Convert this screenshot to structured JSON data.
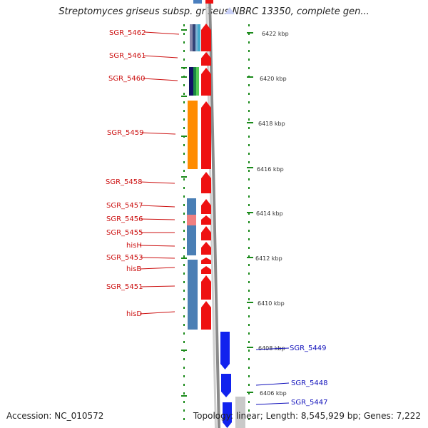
{
  "title": "Streptomyces griseus subsp. griseus NBRC 13350, complete gen...",
  "footer": {
    "accession": "Accession: NC_010572",
    "summary": "Topology: linear; Length: 8,545,929 bp; Genes: 7,222"
  },
  "colors": {
    "gene_forward": "#ee1111",
    "gene_reverse": "#1122ee",
    "label_forward": "#cc1111",
    "label_reverse": "#1111bb",
    "tick": "#1a8a1a",
    "backbone": "#8a8a8a"
  },
  "axis_labels": [
    "6422 kbp",
    "6420 kbp",
    "6418 kbp",
    "6416 kbp",
    "6414 kbp",
    "6412 kbp",
    "6410 kbp",
    "6408 kbp",
    "6406 kbp"
  ],
  "genes": [
    {
      "name": "SGR_5462",
      "strand": "forward"
    },
    {
      "name": "SGR_5461",
      "strand": "forward"
    },
    {
      "name": "SGR_5460",
      "strand": "forward"
    },
    {
      "name": "SGR_5459",
      "strand": "forward"
    },
    {
      "name": "SGR_5458",
      "strand": "forward"
    },
    {
      "name": "SGR_5457",
      "strand": "forward"
    },
    {
      "name": "SGR_5456",
      "strand": "forward"
    },
    {
      "name": "SGR_5455",
      "strand": "forward"
    },
    {
      "name": "hisH",
      "strand": "forward"
    },
    {
      "name": "SGR_5453",
      "strand": "forward"
    },
    {
      "name": "hisB",
      "strand": "forward"
    },
    {
      "name": "SGR_5451",
      "strand": "forward"
    },
    {
      "name": "hisD",
      "strand": "forward"
    },
    {
      "name": "SGR_5449",
      "strand": "reverse"
    },
    {
      "name": "SGR_5448",
      "strand": "reverse"
    },
    {
      "name": "SGR_5447",
      "strand": "reverse"
    }
  ]
}
